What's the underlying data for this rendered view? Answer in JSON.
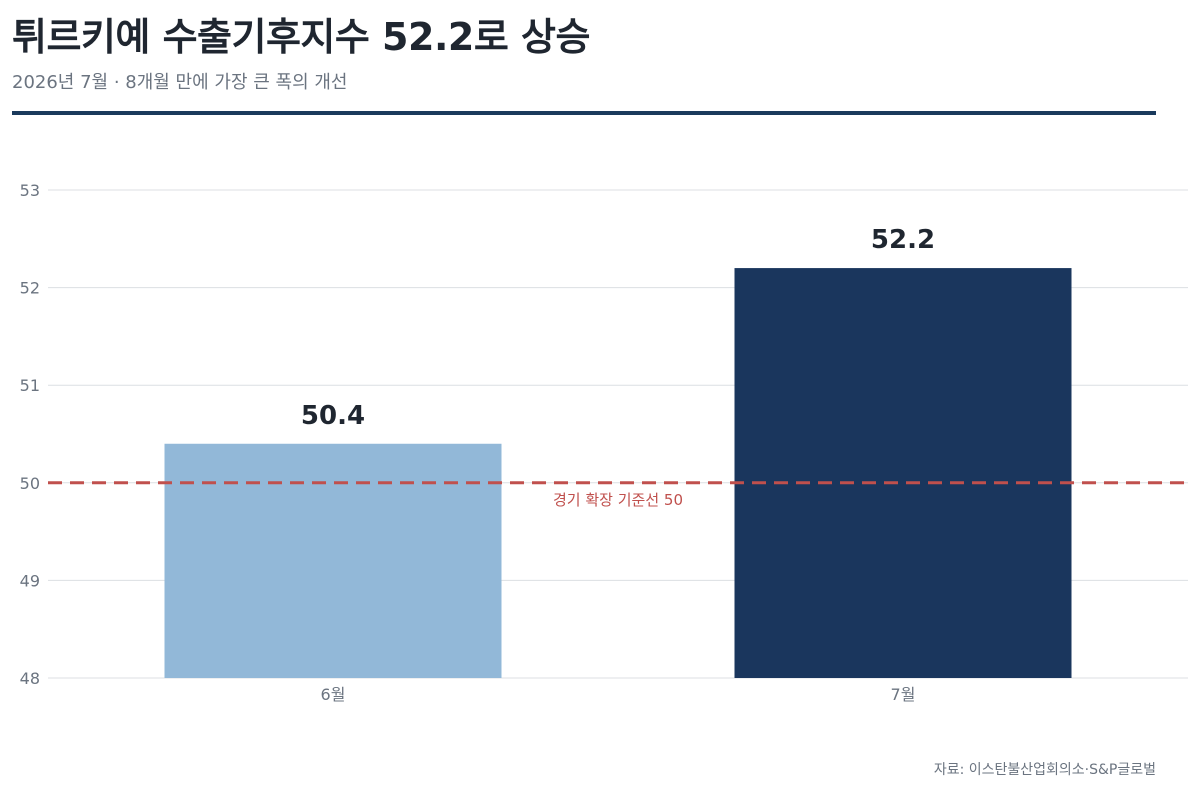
{
  "header": {
    "title": "튀르키예 수출기후지수 52.2로 상승",
    "subtitle": "2026년 7월 · 8개월 만에 가장 큰 폭의 개선"
  },
  "source": "자료: 이스탄불산업회의소·S&P글로벌",
  "chart_data": {
    "type": "bar",
    "categories": [
      "6월",
      "7월"
    ],
    "values": [
      50.4,
      52.2
    ],
    "value_labels": [
      "50.4",
      "52.2"
    ],
    "bar_colors": [
      "#92b8d8",
      "#1a365d"
    ],
    "ylim": [
      48,
      53
    ],
    "yticks": [
      48,
      49,
      50,
      51,
      52,
      53
    ],
    "grid": true,
    "reference_line": {
      "value": 50,
      "label": "경기 확장 기준선 50",
      "color": "#c0504d",
      "style": "dashed"
    },
    "xlabel": "",
    "ylabel": ""
  }
}
